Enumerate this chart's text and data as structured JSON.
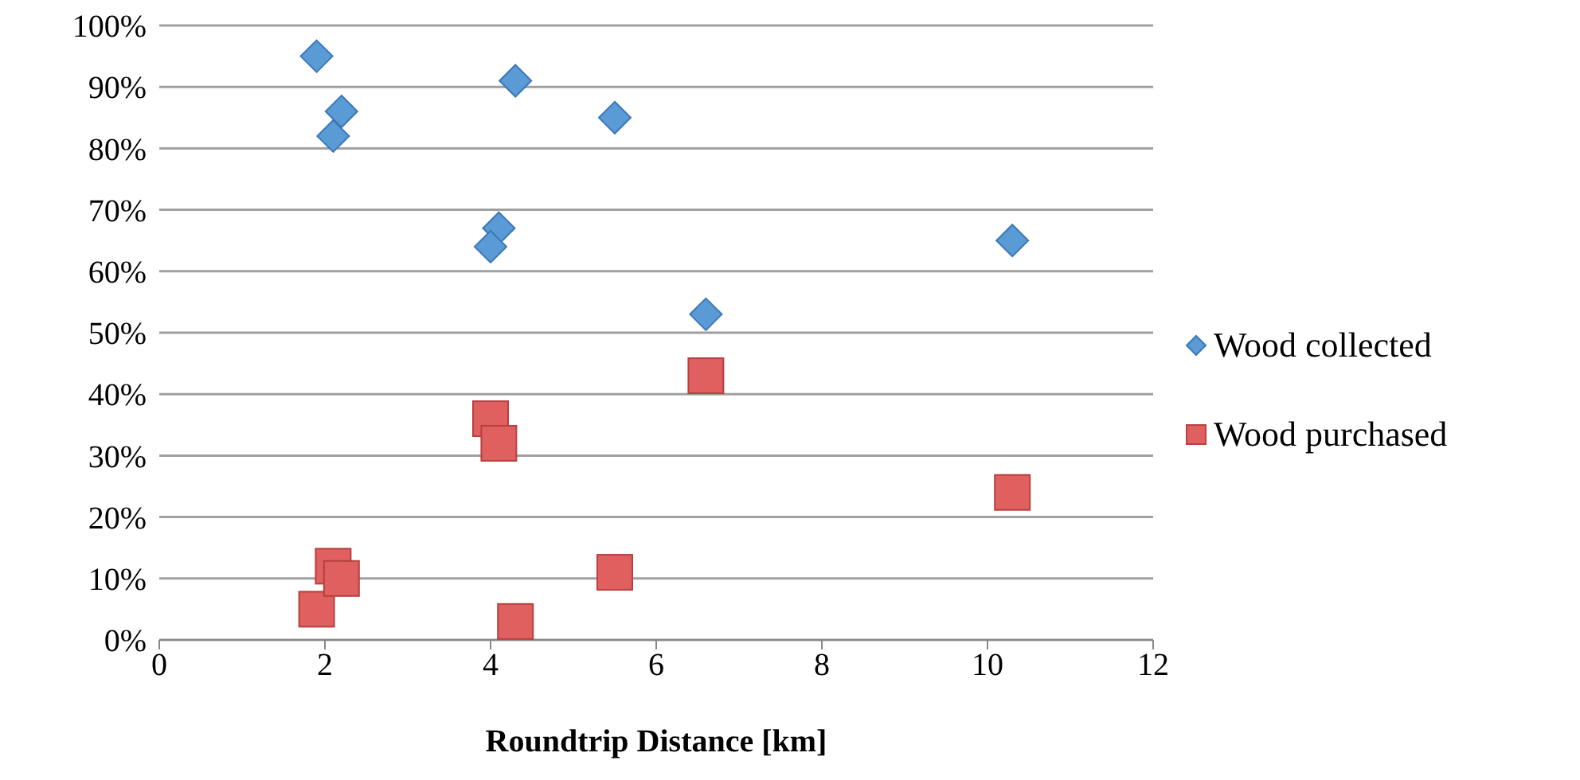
{
  "chart_data": {
    "type": "scatter",
    "xlabel": "Roundtrip Distance [km]",
    "xlim": [
      0,
      12
    ],
    "xticks": [
      0,
      2,
      4,
      6,
      8,
      10,
      12
    ],
    "ylim": [
      0,
      100
    ],
    "yticks": [
      {
        "value": 0,
        "label": "0%"
      },
      {
        "value": 10,
        "label": "10%"
      },
      {
        "value": 20,
        "label": "20%"
      },
      {
        "value": 30,
        "label": "30%"
      },
      {
        "value": 40,
        "label": "40%"
      },
      {
        "value": 50,
        "label": "50%"
      },
      {
        "value": 60,
        "label": "60%"
      },
      {
        "value": 70,
        "label": "70%"
      },
      {
        "value": 80,
        "label": "80%"
      },
      {
        "value": 90,
        "label": "90%"
      },
      {
        "value": 100,
        "label": "100%"
      }
    ],
    "grid": "y",
    "legend": "right",
    "series": [
      {
        "name": "Wood collected",
        "color": "#5b9bd5",
        "marker": "diamond",
        "x": [
          1.9,
          2.2,
          2.1,
          4.3,
          5.5,
          4.1,
          4.0,
          6.6,
          10.3
        ],
        "values": [
          95,
          86,
          82,
          91,
          85,
          67,
          64,
          53,
          65
        ]
      },
      {
        "name": "Wood purchased",
        "color": "#e06060",
        "marker": "square",
        "x": [
          1.9,
          2.1,
          2.2,
          4.0,
          4.1,
          4.3,
          5.5,
          6.6,
          10.3
        ],
        "values": [
          5,
          12,
          10,
          36,
          32,
          3,
          11,
          43,
          24
        ]
      }
    ]
  }
}
